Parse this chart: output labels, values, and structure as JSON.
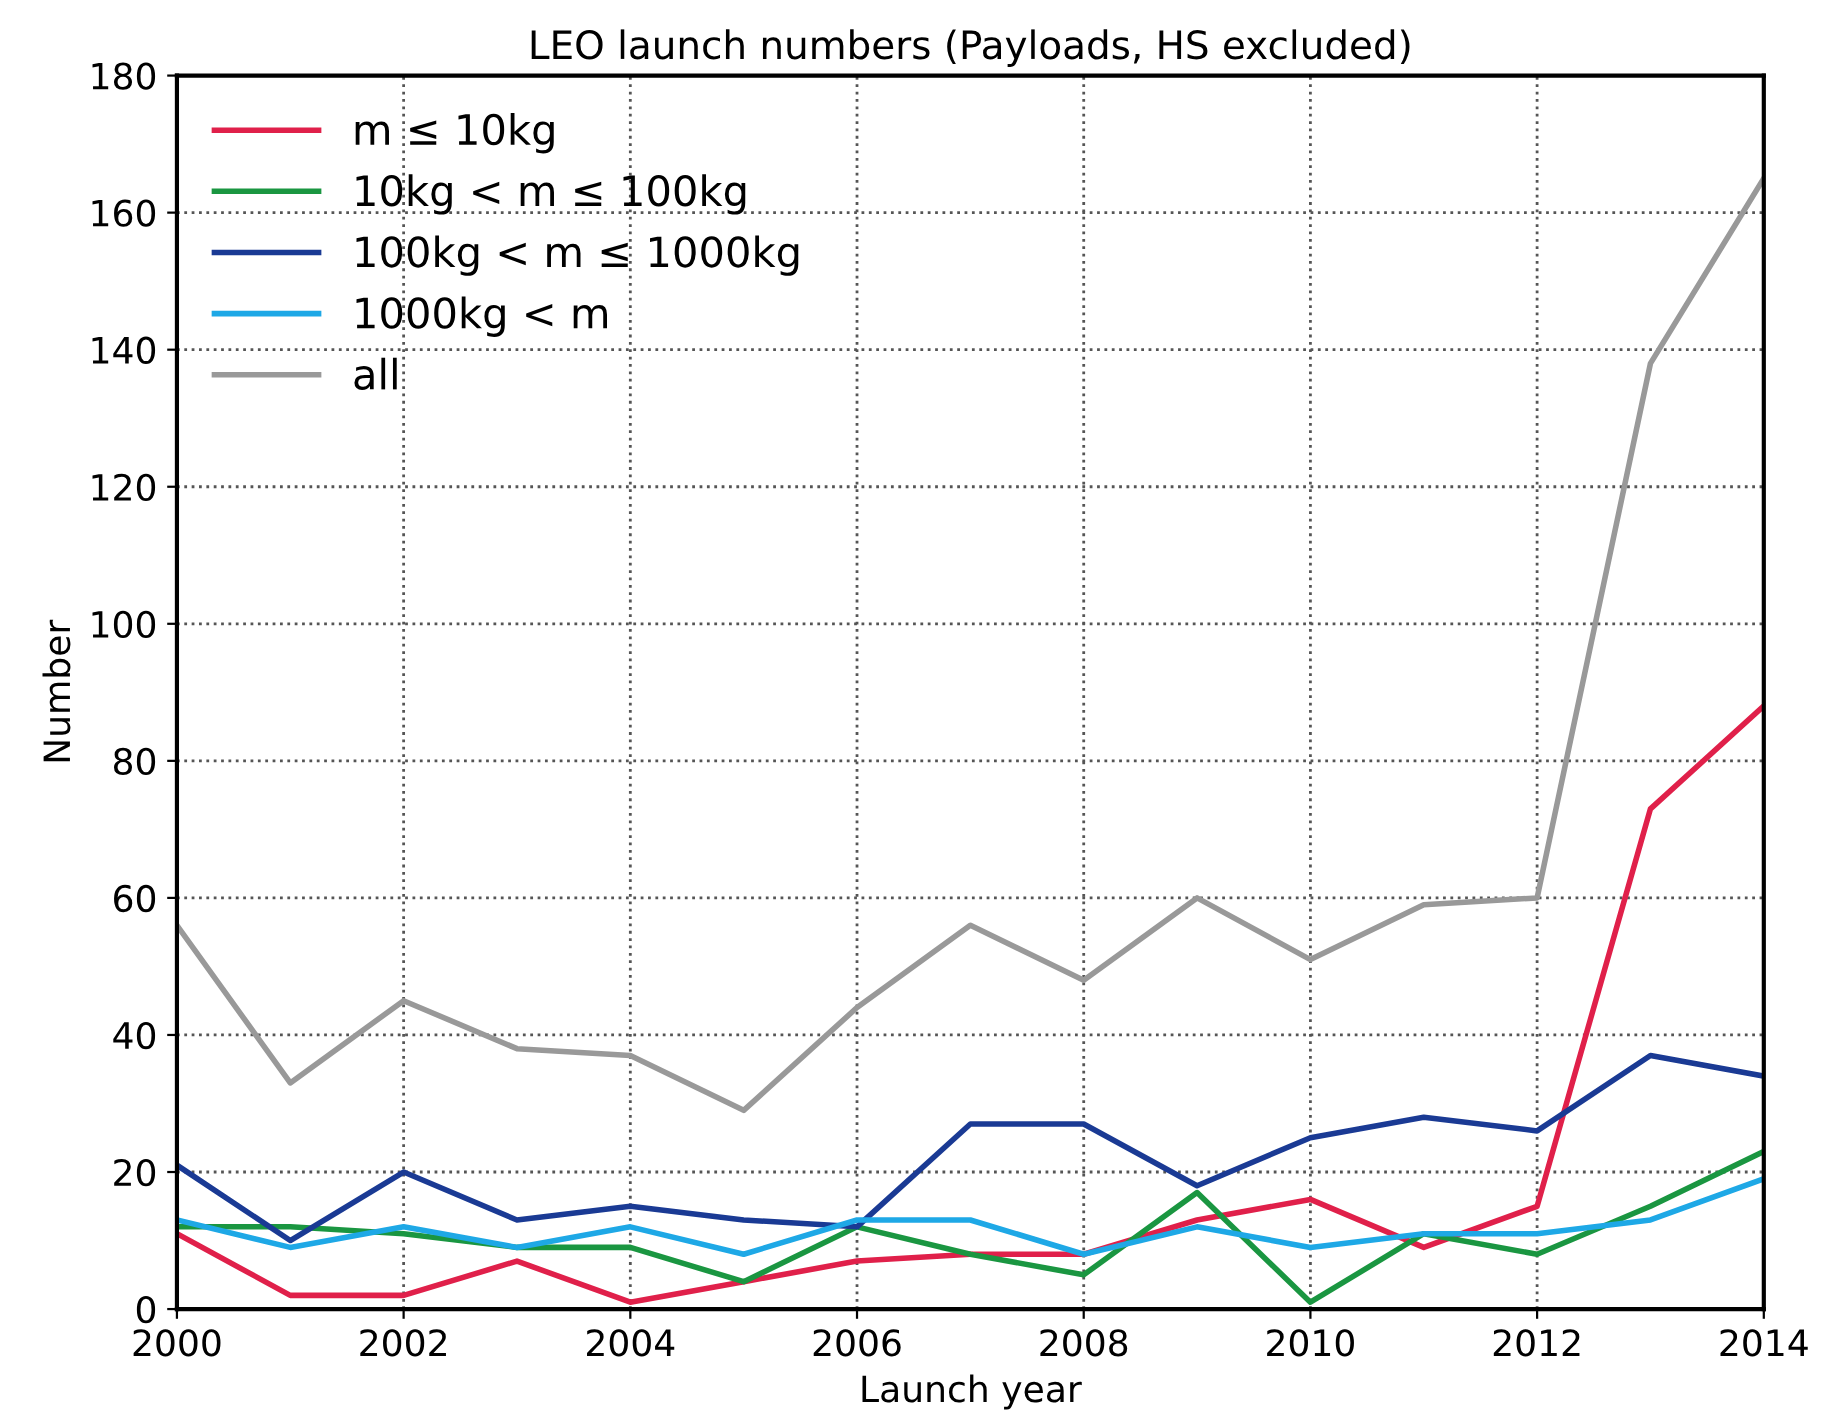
{
  "chart_data": {
    "type": "line",
    "title": "LEO launch numbers (Payloads, HS excluded)",
    "xlabel": "Launch year",
    "ylabel": "Number",
    "x": [
      2000,
      2001,
      2002,
      2003,
      2004,
      2005,
      2006,
      2007,
      2008,
      2009,
      2010,
      2011,
      2012,
      2013,
      2014
    ],
    "series": [
      {
        "name": "m ≤ 10kg",
        "color": "#e0204a",
        "values": [
          11,
          2,
          2,
          7,
          1,
          4,
          7,
          8,
          8,
          13,
          16,
          9,
          15,
          73,
          88
        ]
      },
      {
        "name": "10kg < m ≤ 100kg",
        "color": "#1a9641",
        "values": [
          12,
          12,
          11,
          9,
          9,
          4,
          12,
          8,
          5,
          17,
          1,
          11,
          8,
          15,
          23
        ]
      },
      {
        "name": "100kg < m ≤ 1000kg",
        "color": "#1a3a94",
        "values": [
          21,
          10,
          20,
          13,
          15,
          13,
          12,
          27,
          27,
          18,
          25,
          28,
          26,
          37,
          34
        ]
      },
      {
        "name": "1000kg < m",
        "color": "#1ea8e6",
        "values": [
          13,
          9,
          12,
          9,
          12,
          8,
          13,
          13,
          8,
          12,
          9,
          11,
          11,
          13,
          19
        ]
      },
      {
        "name": "all",
        "color": "#999999",
        "values": [
          56,
          33,
          45,
          38,
          37,
          29,
          44,
          56,
          48,
          60,
          51,
          59,
          60,
          138,
          165
        ]
      }
    ],
    "xlim": [
      2000,
      2014
    ],
    "xticks": [
      2000,
      2002,
      2004,
      2006,
      2008,
      2010,
      2012,
      2014
    ],
    "ylim": [
      0,
      180
    ],
    "yticks": [
      0,
      20,
      40,
      60,
      80,
      100,
      120,
      140,
      160,
      180
    ],
    "grid": true,
    "legend": "top left",
    "line_style": "solid",
    "marker": "none"
  }
}
